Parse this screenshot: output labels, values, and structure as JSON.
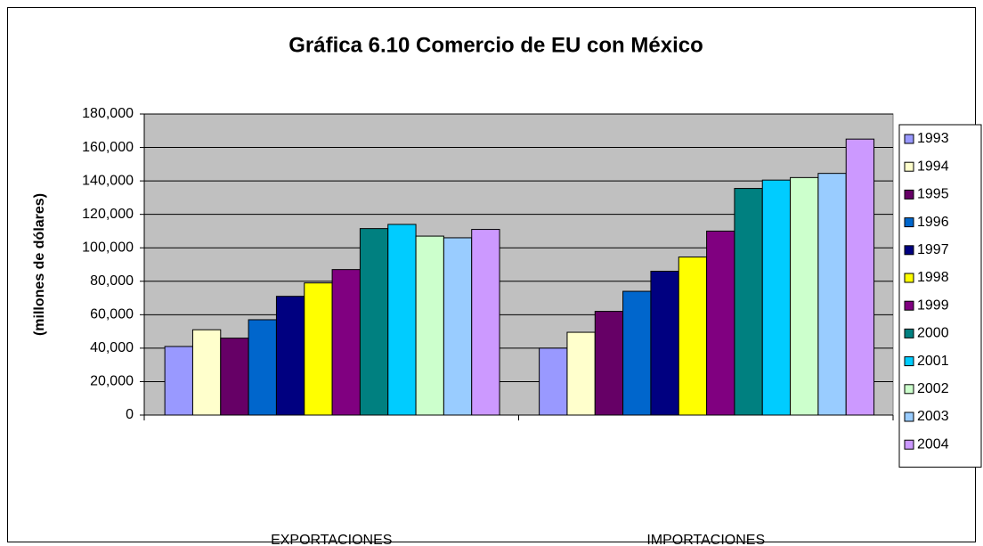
{
  "chart_data": {
    "type": "bar",
    "title": "Gráfica 6.10 Comercio de EU con México",
    "y_label": "(millones de dólares)",
    "categories": [
      "EXPORTACIONES",
      "IMPORTACIONES"
    ],
    "ylim": [
      0,
      180000
    ],
    "yticks": [
      0,
      {
        "value": 20000,
        "label": "20,000"
      },
      {
        "value": 40000,
        "label": "40,000"
      },
      {
        "value": 60000,
        "label": "60,000"
      },
      {
        "value": 80000,
        "label": "80,000"
      },
      {
        "value": 100000,
        "label": "100,000"
      },
      {
        "value": 120000,
        "label": "120,000"
      },
      {
        "value": 140000,
        "label": "140,000"
      },
      {
        "value": 160000,
        "label": "160,000"
      },
      {
        "value": 180000,
        "label": "180,000"
      }
    ],
    "grid": true,
    "legend": "right",
    "series": [
      {
        "name": "1993",
        "color": "#9999ff",
        "values": [
          41000,
          40000
        ]
      },
      {
        "name": "1994",
        "color": "#ffffcc",
        "values": [
          51000,
          49500
        ]
      },
      {
        "name": "1995",
        "color": "#660066",
        "values": [
          46000,
          62000
        ]
      },
      {
        "name": "1996",
        "color": "#0066cc",
        "values": [
          57000,
          74000
        ]
      },
      {
        "name": "1997",
        "color": "#000080",
        "values": [
          71000,
          86000
        ]
      },
      {
        "name": "1998",
        "color": "#ffff00",
        "values": [
          79000,
          94500
        ]
      },
      {
        "name": "1999",
        "color": "#800080",
        "values": [
          87000,
          110000
        ]
      },
      {
        "name": "2000",
        "color": "#008080",
        "values": [
          111500,
          135500
        ]
      },
      {
        "name": "2001",
        "color": "#00ccff",
        "values": [
          114000,
          140500
        ]
      },
      {
        "name": "2002",
        "color": "#ccffcc",
        "values": [
          107000,
          142000
        ]
      },
      {
        "name": "2003",
        "color": "#99ccff",
        "values": [
          106000,
          144500
        ]
      },
      {
        "name": "2004",
        "color": "#cc99ff",
        "values": [
          111000,
          165000
        ]
      }
    ]
  }
}
